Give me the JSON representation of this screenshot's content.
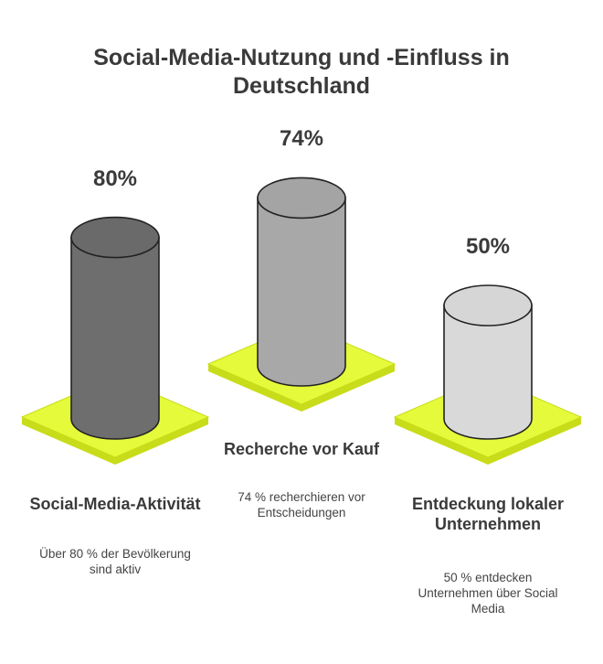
{
  "title": "Social-Media-Nutzung und -Einfluss in Deutschland",
  "colors": {
    "platform": "#e5fa3a",
    "platform_stroke": "#c8dc1a",
    "outline": "#222222"
  },
  "items": [
    {
      "percent_label": "80%",
      "value": 80,
      "title": "Social-Media-Aktivität",
      "description": "Über 80 % der Bevölkerung sind aktiv",
      "color": "#6e6e6e",
      "top_color": "#6a6a6a"
    },
    {
      "percent_label": "74%",
      "value": 74,
      "title": "Recherche vor Kauf",
      "description": "74 % recherchieren vor Entscheidungen",
      "color": "#a8a8a8",
      "top_color": "#a4a4a4"
    },
    {
      "percent_label": "50%",
      "value": 50,
      "title": "Entdeckung lokaler Unternehmen",
      "description": "50 % entdecken Unternehmen über Social Media",
      "color": "#d9d9d9",
      "top_color": "#d6d6d6"
    }
  ]
}
